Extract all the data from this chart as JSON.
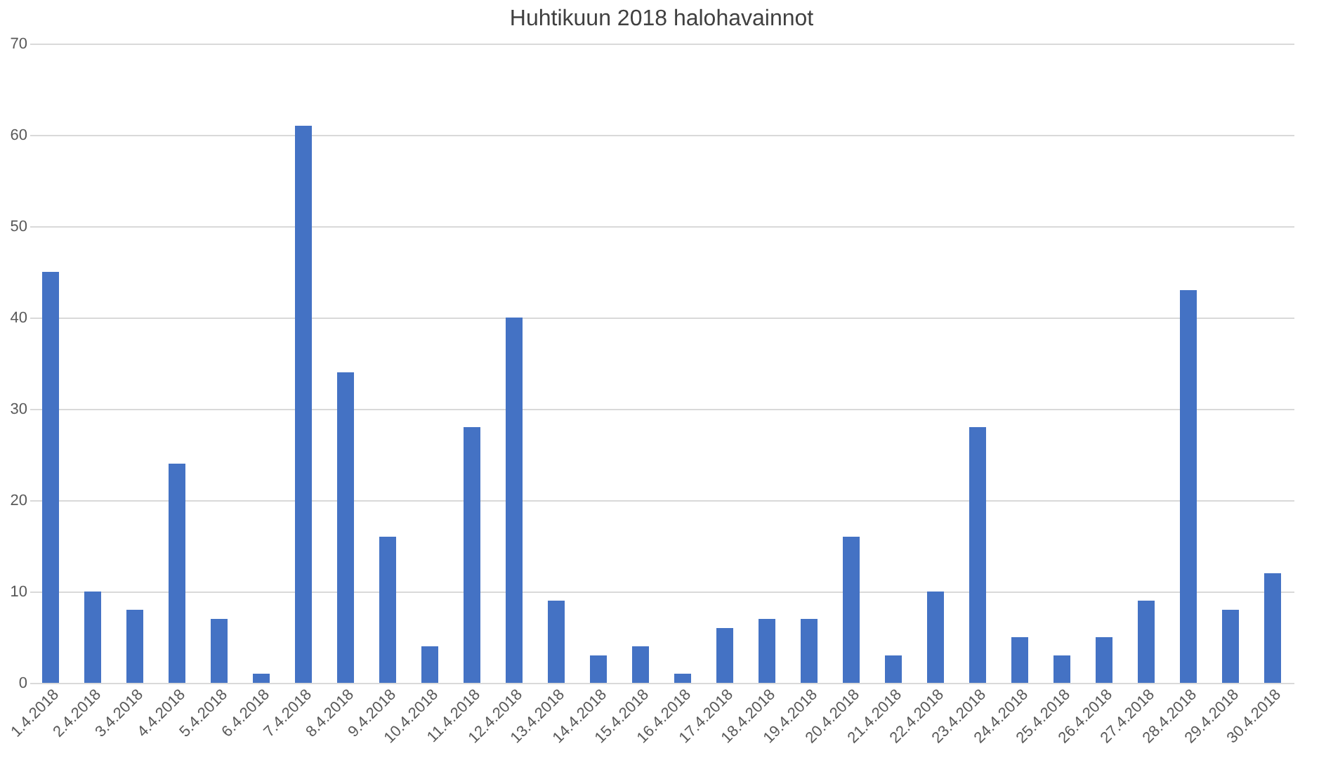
{
  "chart_data": {
    "type": "bar",
    "title": "Huhtikuun 2018 halohavainnot",
    "categories": [
      "1.4.2018",
      "2.4.2018",
      "3.4.2018",
      "4.4.2018",
      "5.4.2018",
      "6.4.2018",
      "7.4.2018",
      "8.4.2018",
      "9.4.2018",
      "10.4.2018",
      "11.4.2018",
      "12.4.2018",
      "13.4.2018",
      "14.4.2018",
      "15.4.2018",
      "16.4.2018",
      "17.4.2018",
      "18.4.2018",
      "19.4.2018",
      "20.4.2018",
      "21.4.2018",
      "22.4.2018",
      "23.4.2018",
      "24.4.2018",
      "25.4.2018",
      "26.4.2018",
      "27.4.2018",
      "28.4.2018",
      "29.4.2018",
      "30.4.2018"
    ],
    "values": [
      45,
      10,
      8,
      24,
      7,
      1,
      61,
      34,
      16,
      4,
      28,
      40,
      9,
      3,
      4,
      1,
      6,
      7,
      7,
      16,
      3,
      10,
      28,
      5,
      3,
      5,
      9,
      43,
      8,
      12
    ],
    "color": "#4472c4",
    "ylim": [
      0,
      70
    ],
    "yticks": [
      0,
      10,
      20,
      30,
      40,
      50,
      60,
      70
    ],
    "grid": "y"
  }
}
